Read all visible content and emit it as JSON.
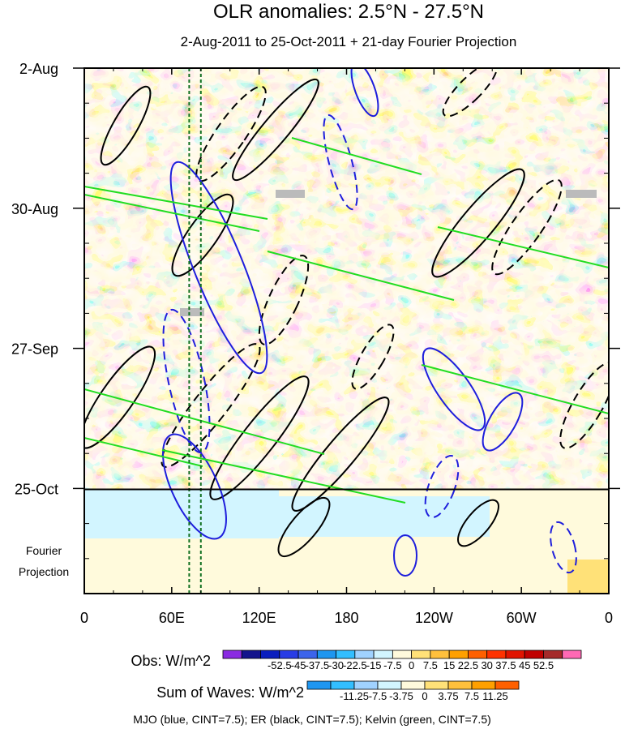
{
  "chart_data": {
    "type": "heatmap",
    "title": "OLR anomalies: 2.5°N - 27.5°N",
    "subtitle": "2-Aug-2011 to 25-Oct-2011 + 21-day Fourier Projection",
    "x_ticks": [
      "0",
      "60E",
      "120E",
      "180",
      "120W",
      "60W",
      "0"
    ],
    "x_tick_lon": [
      0,
      60,
      120,
      180,
      240,
      300,
      360
    ],
    "xlim": [
      0,
      360
    ],
    "y_ticks": [
      "2-Aug",
      "30-Aug",
      "27-Sep",
      "25-Oct"
    ],
    "y_tick_day": [
      0,
      28,
      56,
      84
    ],
    "ylim_days": [
      0,
      105
    ],
    "projection_label_line1": "Fourier",
    "projection_label_line2": "Projection",
    "obs_colorbar": {
      "title": "Obs: W/m^2",
      "labels": [
        "-52.5",
        "-45",
        "-37.5",
        "-30",
        "-22.5",
        "-15",
        "-7.5",
        "0",
        "7.5",
        "15",
        "22.5",
        "30",
        "37.5",
        "45",
        "52.5"
      ],
      "colors": [
        "#8a2be2",
        "#14148c",
        "#0a1ebe",
        "#283ce6",
        "#3c64eb",
        "#1e96f0",
        "#32beff",
        "#a0d2ff",
        "#d2f5ff",
        "#fffadc",
        "#ffe178",
        "#ffc03c",
        "#ffa000",
        "#ff6000",
        "#ff3200",
        "#e11400",
        "#c00000",
        "#a52a2a",
        "#ff69b4"
      ]
    },
    "waves_colorbar": {
      "title": "Sum of Waves: W/m^2",
      "labels": [
        "-11.25",
        "-7.5",
        "-3.75",
        "0",
        "3.75",
        "7.5",
        "11.25"
      ],
      "colors": [
        "#1e96f0",
        "#32beff",
        "#a0d2ff",
        "#d2f5ff",
        "#fffadc",
        "#ffe178",
        "#ffc03c",
        "#ffa000",
        "#ff6000"
      ]
    },
    "series": [
      {
        "name": "MJO",
        "color": "blue",
        "cint": 7.5
      },
      {
        "name": "ER",
        "color": "black",
        "cint": 7.5
      },
      {
        "name": "Kelvin",
        "color": "green",
        "cint": 7.5
      }
    ],
    "marker_lines_lon": [
      72,
      80
    ],
    "footer": "MJO (blue, CINT=7.5); ER (black, CINT=7.5); Kelvin (green, CINT=7.5)"
  }
}
